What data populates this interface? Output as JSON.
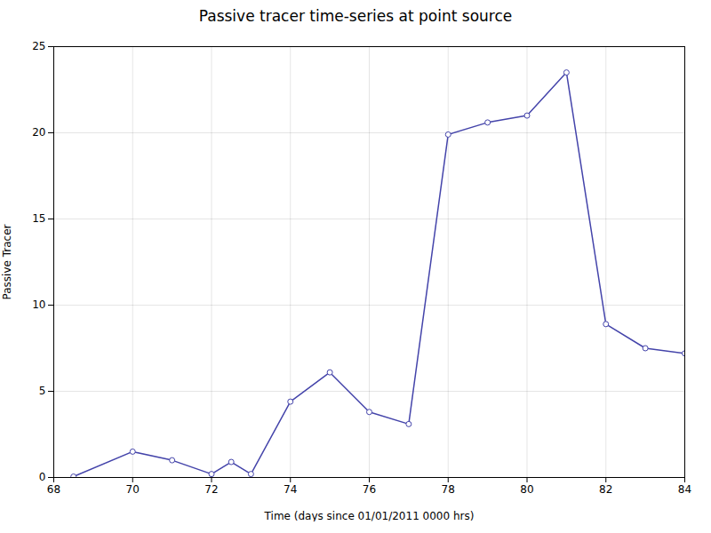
{
  "chart_data": {
    "type": "line",
    "title": "Passive tracer time-series at point source",
    "xlabel": "Time (days since 01/01/2011 0000 hrs)",
    "ylabel": "Passive Tracer",
    "x": [
      68.5,
      70.0,
      71.0,
      72.0,
      72.5,
      73.0,
      74.0,
      75.0,
      76.0,
      77.0,
      78.0,
      79.0,
      80.0,
      81.0,
      82.0,
      83.0,
      84.0
    ],
    "values": [
      0.05,
      1.5,
      1.0,
      0.2,
      0.9,
      0.2,
      4.4,
      6.1,
      3.8,
      3.1,
      19.9,
      20.6,
      21.0,
      23.5,
      8.9,
      7.5,
      7.2
    ],
    "color": "#4444aa",
    "marker": "circle",
    "xlim": [
      68,
      84
    ],
    "ylim": [
      0,
      25
    ],
    "xticks": [
      68,
      70,
      72,
      74,
      76,
      78,
      80,
      82,
      84
    ],
    "yticks": [
      0,
      5,
      10,
      15,
      20,
      25
    ],
    "grid": true
  }
}
